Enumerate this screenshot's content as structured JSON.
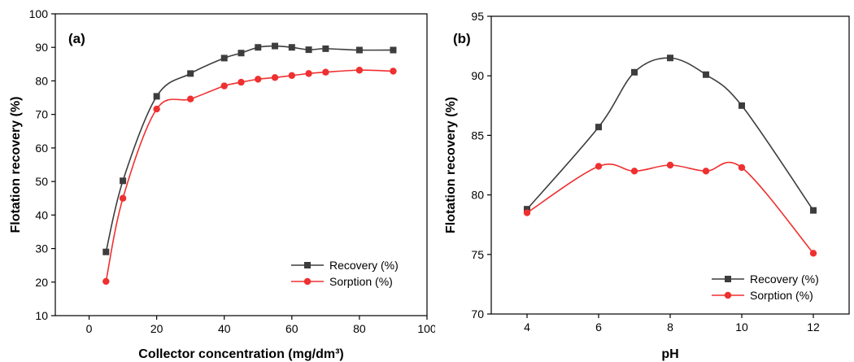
{
  "colors": {
    "recovery": "#3d3d3d",
    "sorption": "#ef3030"
  },
  "chart_data": [
    {
      "type": "line",
      "panel_label": "(a)",
      "xlabel": "Collector concentration (mg/dm³)",
      "ylabel": "Flotation recovery (%)",
      "xlim": [
        -10,
        100
      ],
      "ylim": [
        10,
        100
      ],
      "xticks": [
        0,
        20,
        40,
        60,
        80,
        100
      ],
      "yticks": [
        10,
        20,
        30,
        40,
        50,
        60,
        70,
        80,
        90,
        100
      ],
      "legend_position": "bottom-right",
      "series": [
        {
          "name": "Recovery (%)",
          "marker": "square",
          "x": [
            5,
            10,
            20,
            30,
            40,
            45,
            50,
            55,
            60,
            65,
            70,
            80,
            90
          ],
          "y": [
            29,
            50.2,
            75.4,
            82.2,
            86.8,
            88.3,
            90,
            90.4,
            90,
            89.3,
            89.6,
            89.2,
            89.2
          ]
        },
        {
          "name": "Sorption (%)",
          "marker": "circle",
          "x": [
            5,
            10,
            20,
            30,
            40,
            45,
            50,
            55,
            60,
            65,
            70,
            80,
            90
          ],
          "y": [
            20.2,
            45,
            71.6,
            74.6,
            78.5,
            79.6,
            80.5,
            81,
            81.6,
            82.2,
            82.6,
            83.2,
            82.9
          ]
        }
      ]
    },
    {
      "type": "line",
      "panel_label": "(b)",
      "xlabel": "pH",
      "ylabel": "Flotation recovery (%)",
      "xlim": [
        3,
        13
      ],
      "ylim": [
        70,
        95
      ],
      "xticks": [
        4,
        6,
        8,
        10,
        12
      ],
      "yticks": [
        70,
        75,
        80,
        85,
        90,
        95
      ],
      "legend_position": "bottom-right",
      "series": [
        {
          "name": "Recovery (%)",
          "marker": "square",
          "x": [
            4,
            6,
            7,
            8,
            9,
            10,
            12
          ],
          "y": [
            78.8,
            85.7,
            90.3,
            91.5,
            90.1,
            87.5,
            78.7
          ]
        },
        {
          "name": "Sorption (%)",
          "marker": "circle",
          "x": [
            4,
            6,
            7,
            8,
            9,
            10,
            12
          ],
          "y": [
            78.5,
            82.4,
            82,
            82.5,
            82,
            82.3,
            75.1
          ]
        }
      ]
    }
  ]
}
